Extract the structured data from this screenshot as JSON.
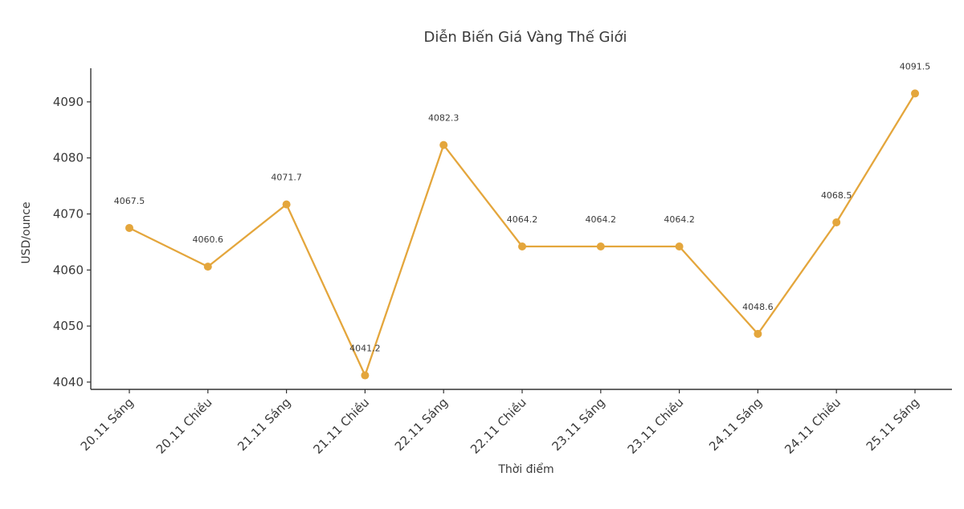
{
  "chart_data": {
    "type": "line",
    "title": "Diễn Biến Giá Vàng Thế Giới",
    "xlabel": "Thời điểm",
    "ylabel": "USD/ounce",
    "categories": [
      "20.11 Sáng",
      "20.11 Chiều",
      "21.11 Sáng",
      "21.11 Chiều",
      "22.11 Sáng",
      "22.11 Chiều",
      "23.11 Sáng",
      "23.11 Chiều",
      "24.11 Sáng",
      "24.11 Chiều",
      "25.11 Sáng"
    ],
    "values": [
      4067.5,
      4060.6,
      4071.7,
      4041.2,
      4082.3,
      4064.2,
      4064.2,
      4064.2,
      4048.6,
      4068.5,
      4091.5
    ],
    "point_labels": [
      "4067.5",
      "4060.6",
      "4071.7",
      "4041.2",
      "4082.3",
      "4064.2",
      "4064.2",
      "4064.2",
      "4048.6",
      "4068.5",
      "4091.5"
    ],
    "yticks": [
      4040,
      4050,
      4060,
      4070,
      4080,
      4090
    ],
    "ylim": [
      4038.7,
      4096.0
    ],
    "grid": false,
    "legend": null,
    "line_color": "#E4A63C",
    "marker_color": "#E4A63C",
    "axis_color": "#333333",
    "text_color": "#3a3a3a",
    "background_color": "#ffffff"
  }
}
